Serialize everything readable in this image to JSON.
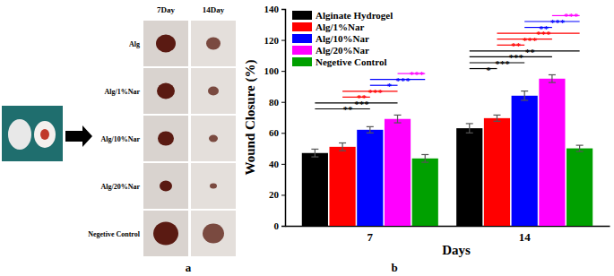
{
  "chart_data": {
    "type": "bar",
    "y_label": "Wound Closure (%)",
    "x_label": "Days",
    "categories": [
      "7",
      "14"
    ],
    "series": [
      {
        "name": "Alginate Hydrogel",
        "color": "#000000",
        "values": [
          47,
          63
        ],
        "errors": [
          2.5,
          3
        ]
      },
      {
        "name": "Alg/1%Nar",
        "color": "#ff0000",
        "values": [
          51,
          69.5
        ],
        "errors": [
          2.5,
          2
        ]
      },
      {
        "name": "Alg/10%Nar",
        "color": "#0000ff",
        "values": [
          62,
          84
        ],
        "errors": [
          2,
          3
        ]
      },
      {
        "name": "Alg/20%Nar",
        "color": "#ff00ff",
        "values": [
          69,
          95
        ],
        "errors": [
          2.5,
          2.5
        ]
      },
      {
        "name": "Negetive Control",
        "color": "#00a000",
        "values": [
          43.5,
          50
        ],
        "errors": [
          2.5,
          2
        ]
      }
    ],
    "ylim": [
      0,
      140
    ],
    "yticks": [
      0,
      20,
      40,
      60,
      80,
      100,
      120,
      140
    ],
    "grid": false,
    "legend": "upper left",
    "annotations": [
      {
        "text": "**",
        "category": 0,
        "from": 0,
        "to": 2,
        "color": "#000000"
      },
      {
        "text": "***",
        "category": 0,
        "from": 0,
        "to": 3,
        "color": "#000000"
      },
      {
        "text": "**",
        "category": 0,
        "from": 1,
        "to": 2,
        "color": "#ff0000"
      },
      {
        "text": "***",
        "category": 0,
        "from": 1,
        "to": 3,
        "color": "#ff0000"
      },
      {
        "text": "*",
        "category": 0,
        "from": 2,
        "to": 3,
        "color": "#0000ff"
      },
      {
        "text": "***",
        "category": 0,
        "from": 2,
        "to": 4,
        "color": "#0000ff"
      },
      {
        "text": "***",
        "category": 0,
        "from": 3,
        "to": 4,
        "color": "#ff00ff"
      },
      {
        "text": "*",
        "category": 1,
        "from": 0,
        "to": 1,
        "color": "#000000"
      },
      {
        "text": "***",
        "category": 1,
        "from": 0,
        "to": 2,
        "color": "#000000"
      },
      {
        "text": "***",
        "category": 1,
        "from": 0,
        "to": 3,
        "color": "#000000"
      },
      {
        "text": "**",
        "category": 1,
        "from": 0,
        "to": 4,
        "color": "#000000"
      },
      {
        "text": "**",
        "category": 1,
        "from": 1,
        "to": 2,
        "color": "#ff0000"
      },
      {
        "text": "***",
        "category": 1,
        "from": 1,
        "to": 3,
        "color": "#ff0000"
      },
      {
        "text": "***",
        "category": 1,
        "from": 1,
        "to": 4,
        "color": "#ff0000"
      },
      {
        "text": "**",
        "category": 1,
        "from": 2,
        "to": 3,
        "color": "#0000ff"
      },
      {
        "text": "***",
        "category": 1,
        "from": 2,
        "to": 4,
        "color": "#0000ff"
      },
      {
        "text": "***",
        "category": 1,
        "from": 3,
        "to": 4,
        "color": "#ff00ff"
      }
    ]
  },
  "panel_a": {
    "columns": [
      "7Day",
      "14Day"
    ],
    "rows": [
      "Alg",
      "Alg/1%Nar",
      "Alg/10%Nar",
      "Alg/20%Nar",
      "Negetive Control"
    ]
  },
  "panel_labels": [
    "a",
    "b"
  ]
}
